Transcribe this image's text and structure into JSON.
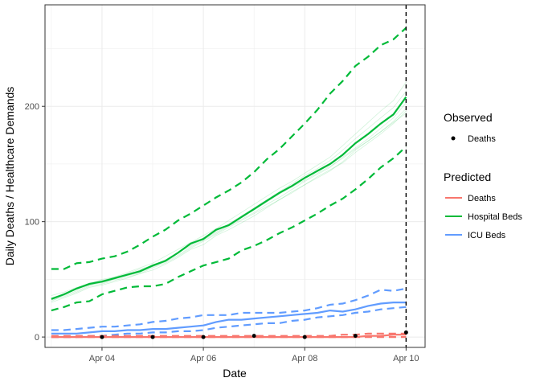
{
  "chart_data": {
    "type": "line",
    "xlabel": "Date",
    "ylabel": "Daily Deaths / Healthcare Demands",
    "x_range": [
      "2020-04-02T21:00",
      "2020-04-10T09:00"
    ],
    "ylim": [
      -9,
      288
    ],
    "x_ticks": [
      {
        "date": "2020-04-04",
        "label": "Apr 04"
      },
      {
        "date": "2020-04-06",
        "label": "Apr 06"
      },
      {
        "date": "2020-04-08",
        "label": "Apr 08"
      },
      {
        "date": "2020-04-10",
        "label": "Apr 10"
      }
    ],
    "y_ticks": [
      0,
      100,
      200
    ],
    "vline_date": "2020-04-10",
    "grid": true,
    "legend_position": "right",
    "dates": [
      "2020-04-03",
      "2020-04-03T06:00",
      "2020-04-03T12:00",
      "2020-04-03T18:00",
      "2020-04-04",
      "2020-04-04T06:00",
      "2020-04-04T12:00",
      "2020-04-04T18:00",
      "2020-04-05",
      "2020-04-05T06:00",
      "2020-04-05T12:00",
      "2020-04-05T18:00",
      "2020-04-06",
      "2020-04-06T06:00",
      "2020-04-06T12:00",
      "2020-04-06T18:00",
      "2020-04-07",
      "2020-04-07T06:00",
      "2020-04-07T12:00",
      "2020-04-07T18:00",
      "2020-04-08",
      "2020-04-08T06:00",
      "2020-04-08T12:00",
      "2020-04-08T18:00",
      "2020-04-09",
      "2020-04-09T06:00",
      "2020-04-09T12:00",
      "2020-04-09T18:00",
      "2020-04-10"
    ],
    "predicted": [
      {
        "name": "Hospital Beds",
        "color": "#00ba38",
        "median": [
          33,
          37,
          42,
          46,
          48,
          51,
          54,
          57,
          62,
          66,
          73,
          81,
          85,
          93,
          97,
          104,
          111,
          118,
          125,
          131,
          138,
          144,
          150,
          158,
          168,
          176,
          185,
          193,
          208
        ],
        "upper": [
          59,
          59,
          64,
          65,
          68,
          70,
          74,
          80,
          87,
          93,
          101,
          107,
          114,
          121,
          127,
          134,
          143,
          154,
          163,
          174,
          185,
          197,
          211,
          222,
          235,
          243,
          253,
          258,
          268
        ],
        "lower": [
          23,
          26,
          30,
          31,
          37,
          40,
          43,
          44,
          44,
          46,
          52,
          57,
          62,
          65,
          68,
          75,
          79,
          84,
          90,
          95,
          101,
          107,
          114,
          120,
          128,
          137,
          147,
          155,
          165
        ],
        "ensemble": [
          [
            36,
            39,
            43,
            46,
            50,
            52,
            56,
            60,
            64,
            70,
            76,
            82,
            88,
            94,
            101,
            108,
            115,
            122,
            129,
            135,
            142,
            149,
            156,
            166,
            176,
            186,
            196,
            205,
            221
          ],
          [
            30,
            34,
            38,
            43,
            45,
            48,
            51,
            55,
            58,
            63,
            69,
            76,
            80,
            88,
            93,
            99,
            105,
            112,
            119,
            125,
            132,
            138,
            144,
            152,
            162,
            170,
            178,
            187,
            198
          ],
          [
            31,
            36,
            40,
            45,
            48,
            51,
            53,
            56,
            61,
            65,
            71,
            78,
            84,
            90,
            96,
            102,
            108,
            115,
            121,
            128,
            135,
            141,
            147,
            156,
            164,
            172,
            181,
            190,
            203
          ],
          [
            34,
            37,
            42,
            47,
            49,
            52,
            55,
            59,
            62,
            67,
            73,
            79,
            85,
            91,
            97,
            104,
            110,
            117,
            124,
            130,
            136,
            142,
            148,
            155,
            163,
            170,
            178,
            186,
            194
          ],
          [
            33,
            37,
            42,
            45,
            47,
            50,
            54,
            58,
            61,
            66,
            73,
            80,
            86,
            92,
            98,
            105,
            112,
            119,
            126,
            133,
            140,
            146,
            153,
            162,
            172,
            181,
            190,
            199,
            213
          ],
          [
            32,
            35,
            39,
            44,
            46,
            49,
            52,
            55,
            60,
            64,
            70,
            77,
            83,
            89,
            95,
            101,
            107,
            113,
            119,
            126,
            132,
            139,
            145,
            151,
            160,
            168,
            176,
            185,
            196
          ]
        ]
      },
      {
        "name": "ICU Beds",
        "color": "#619cff",
        "median": [
          3,
          3,
          3,
          4,
          5,
          5,
          6,
          6,
          7,
          7,
          8,
          9,
          10,
          13,
          15,
          15,
          16,
          17,
          18,
          19,
          20,
          21,
          23,
          22,
          24,
          27,
          29,
          30,
          30
        ],
        "upper": [
          6,
          6,
          7,
          8,
          9,
          9,
          10,
          11,
          13,
          14,
          16,
          17,
          19,
          19,
          19,
          21,
          21,
          21,
          21,
          22,
          23,
          25,
          28,
          29,
          32,
          36,
          41,
          40,
          42
        ],
        "lower": [
          0,
          0,
          0,
          1,
          1,
          2,
          3,
          3,
          4,
          4,
          5,
          5,
          6,
          8,
          9,
          10,
          11,
          12,
          12,
          14,
          15,
          17,
          18,
          19,
          21,
          22,
          24,
          25,
          26
        ],
        "ensemble": []
      },
      {
        "name": "Deaths",
        "color": "#f8766d",
        "median": [
          0,
          0,
          0,
          0,
          0,
          0,
          0,
          0,
          0,
          0,
          0,
          0,
          0,
          0,
          0,
          0,
          0,
          0,
          0,
          0,
          0,
          0,
          0,
          0,
          0,
          1,
          1,
          2,
          2
        ],
        "upper": [
          1,
          1,
          1,
          1,
          1,
          1,
          1,
          1,
          1,
          1,
          1,
          1,
          1,
          1,
          1,
          1,
          1,
          1,
          1,
          1,
          1,
          1,
          1,
          2,
          2,
          3,
          3,
          3,
          3
        ],
        "lower": [
          0,
          0,
          0,
          0,
          0,
          0,
          0,
          0,
          0,
          0,
          0,
          0,
          0,
          0,
          0,
          0,
          0,
          0,
          0,
          0,
          0,
          0,
          0,
          0,
          0,
          0,
          0,
          0,
          0
        ],
        "ensemble": []
      }
    ],
    "observed": {
      "name": "Deaths",
      "color": "#000000",
      "points": [
        {
          "date": "2020-04-04",
          "value": 0
        },
        {
          "date": "2020-04-05",
          "value": 0
        },
        {
          "date": "2020-04-06",
          "value": 0
        },
        {
          "date": "2020-04-07",
          "value": 1
        },
        {
          "date": "2020-04-08",
          "value": 0
        },
        {
          "date": "2020-04-09",
          "value": 1
        },
        {
          "date": "2020-04-10",
          "value": 4
        }
      ]
    },
    "legend": {
      "observed_title": "Observed",
      "observed_items": [
        {
          "label": "Deaths",
          "color": "#000000"
        }
      ],
      "predicted_title": "Predicted",
      "predicted_items": [
        {
          "label": "Deaths",
          "color": "#f8766d"
        },
        {
          "label": "Hospital Beds",
          "color": "#00ba38"
        },
        {
          "label": "ICU Beds",
          "color": "#619cff"
        }
      ]
    }
  }
}
